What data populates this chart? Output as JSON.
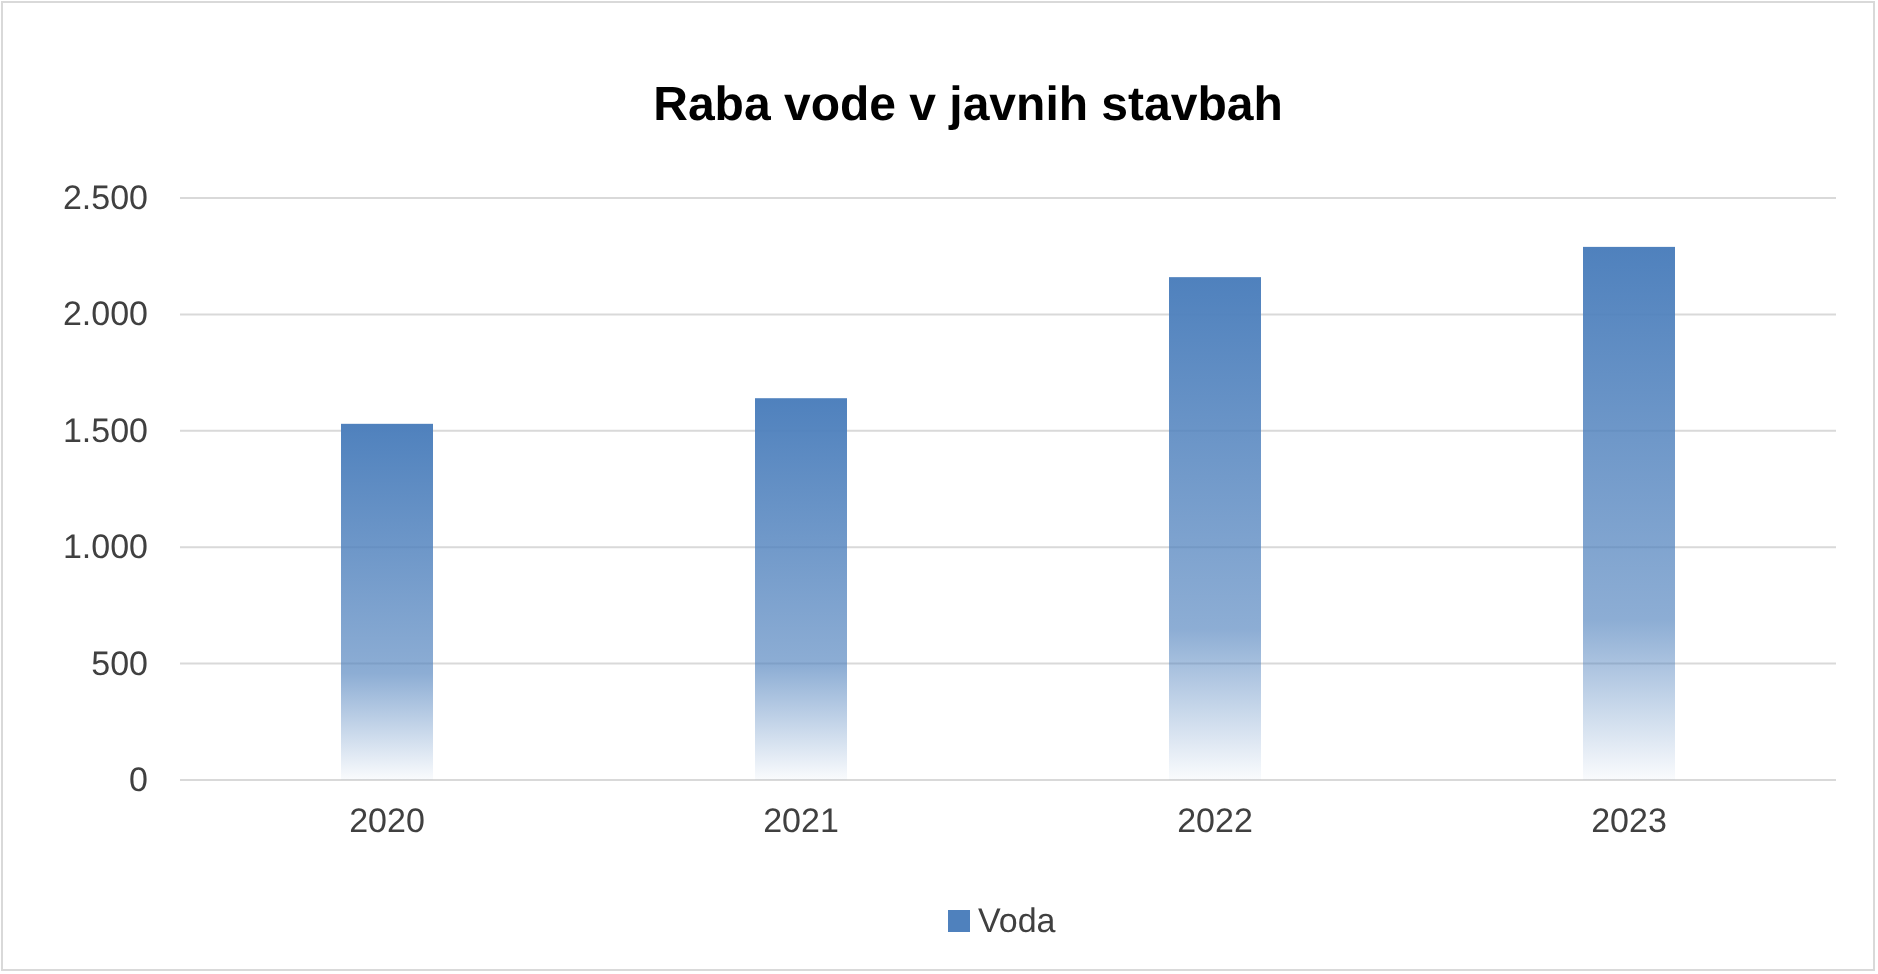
{
  "chart_data": {
    "type": "bar",
    "title": "Raba vode v javnih stavbah",
    "categories": [
      "2020",
      "2021",
      "2022",
      "2023"
    ],
    "series": [
      {
        "name": "Voda",
        "color": "#4f81bd",
        "values": [
          1530,
          1640,
          2160,
          2290
        ]
      }
    ],
    "ylim": [
      0,
      2500
    ],
    "yticks": [
      0,
      500,
      {
        "value": 1000,
        "label": "1.000"
      },
      {
        "value": 1500,
        "label": "1.500"
      },
      {
        "value": 2000,
        "label": "2.000"
      },
      {
        "value": 2500,
        "label": "2.500"
      }
    ],
    "grid": "y",
    "legend": "bottom"
  }
}
